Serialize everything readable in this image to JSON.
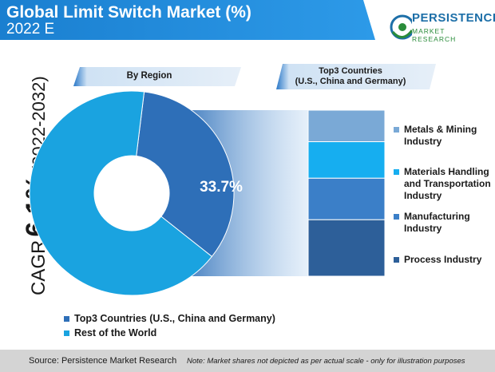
{
  "header": {
    "title": "Global Limit Switch Market (%)",
    "subtitle": "2022 E",
    "band_color": "#1f88d8"
  },
  "logo": {
    "line1": "PERSISTENCE",
    "line2": "MARKET RESEARCH",
    "icon": "persistence-logo-icon"
  },
  "labels": {
    "region": "By Region",
    "top3_line1": "Top3 Countries",
    "top3_line2": "(U.S., China and Germany)"
  },
  "cagr": {
    "label": "CAGR",
    "value": "6.1%",
    "period": "(2022-2032)"
  },
  "chart_data": [
    {
      "type": "pie",
      "variant": "donut",
      "title": "By Region",
      "slices": [
        {
          "name": "Top3 Countries (U.S., China and Germany)",
          "value": 33.7,
          "label": "33.7%",
          "color": "#2e6fb8"
        },
        {
          "name": "Rest of the World",
          "value": 66.3,
          "label": "",
          "color": "#1aa3e0"
        }
      ],
      "legend_position": "bottom-left"
    },
    {
      "type": "bar",
      "variant": "stacked",
      "title": "Top3 Countries (U.S., China and Germany)",
      "categories": [
        "Top3 Countries"
      ],
      "series": [
        {
          "name": "Metals & Mining Industry",
          "value": 19,
          "color": "#7aa9d6"
        },
        {
          "name": "Materials Handling and Transportation Industry",
          "value": 22,
          "color": "#16aef0"
        },
        {
          "name": "Manufacturing Industry",
          "value": 25,
          "color": "#3b7fc8"
        },
        {
          "name": "Process Industry",
          "value": 34,
          "color": "#2d5f99"
        }
      ],
      "note": "Market shares not depicted as per actual scale",
      "legend_position": "right"
    }
  ],
  "legend": {
    "items": [
      {
        "label": "Top3 Countries (U.S., China and Germany)",
        "color": "#2e6fb8"
      },
      {
        "label": "Rest of the World",
        "color": "#1aa3e0"
      }
    ]
  },
  "stack_legend": {
    "items": [
      {
        "line1": "Metals & Mining",
        "line2": "Industry",
        "line3": "",
        "color": "#7aa9d6"
      },
      {
        "line1": "Materials Handling",
        "line2": "and Transportation",
        "line3": "Industry",
        "color": "#16aef0"
      },
      {
        "line1": "Manufacturing",
        "line2": "Industry",
        "line3": "",
        "color": "#3b7fc8"
      },
      {
        "line1": "Process Industry",
        "line2": "",
        "line3": "",
        "color": "#2d5f99"
      }
    ]
  },
  "footer": {
    "source": "Source: Persistence Market Research",
    "note": "Note: Market shares not depicted as per actual scale - only for illustration purposes"
  }
}
